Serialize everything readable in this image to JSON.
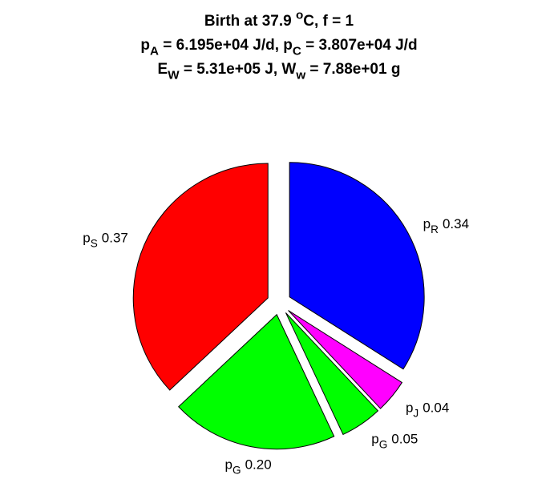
{
  "chart_data": {
    "type": "pie",
    "title": [
      [
        {
          "text": "Birth at 37.9 "
        },
        {
          "text": "o",
          "sup": true
        },
        {
          "text": "C, f = 1"
        }
      ],
      [
        {
          "text": "p"
        },
        {
          "text": "A",
          "sub": true
        },
        {
          "text": " = 6.195e+04 J/d, p"
        },
        {
          "text": "C",
          "sub": true
        },
        {
          "text": " = 3.807e+04 J/d"
        }
      ],
      [
        {
          "text": "E"
        },
        {
          "text": "W",
          "sub": true
        },
        {
          "text": " = 5.31e+05 J, W"
        },
        {
          "text": "w",
          "sub": true
        },
        {
          "text": " = 7.88e+01 g"
        }
      ]
    ],
    "categories": [
      [
        {
          "text": "p"
        },
        {
          "text": "R",
          "sub": true
        }
      ],
      [
        {
          "text": "p"
        },
        {
          "text": "J",
          "sub": true
        }
      ],
      [
        {
          "text": "p"
        },
        {
          "text": "G",
          "sub": true
        }
      ],
      [
        {
          "text": "p"
        },
        {
          "text": "G",
          "sub": true
        }
      ],
      [
        {
          "text": "p"
        },
        {
          "text": "S",
          "sub": true
        }
      ]
    ],
    "values": [
      0.34,
      0.04,
      0.05,
      0.2,
      0.37
    ],
    "value_labels": [
      "0.34",
      "0.04",
      "0.05",
      "0.20",
      "0.37"
    ],
    "colors": [
      "#0000ff",
      "#ff00ff",
      "#00ff00",
      "#00ff00",
      "#ff0000"
    ],
    "exploded": true
  }
}
